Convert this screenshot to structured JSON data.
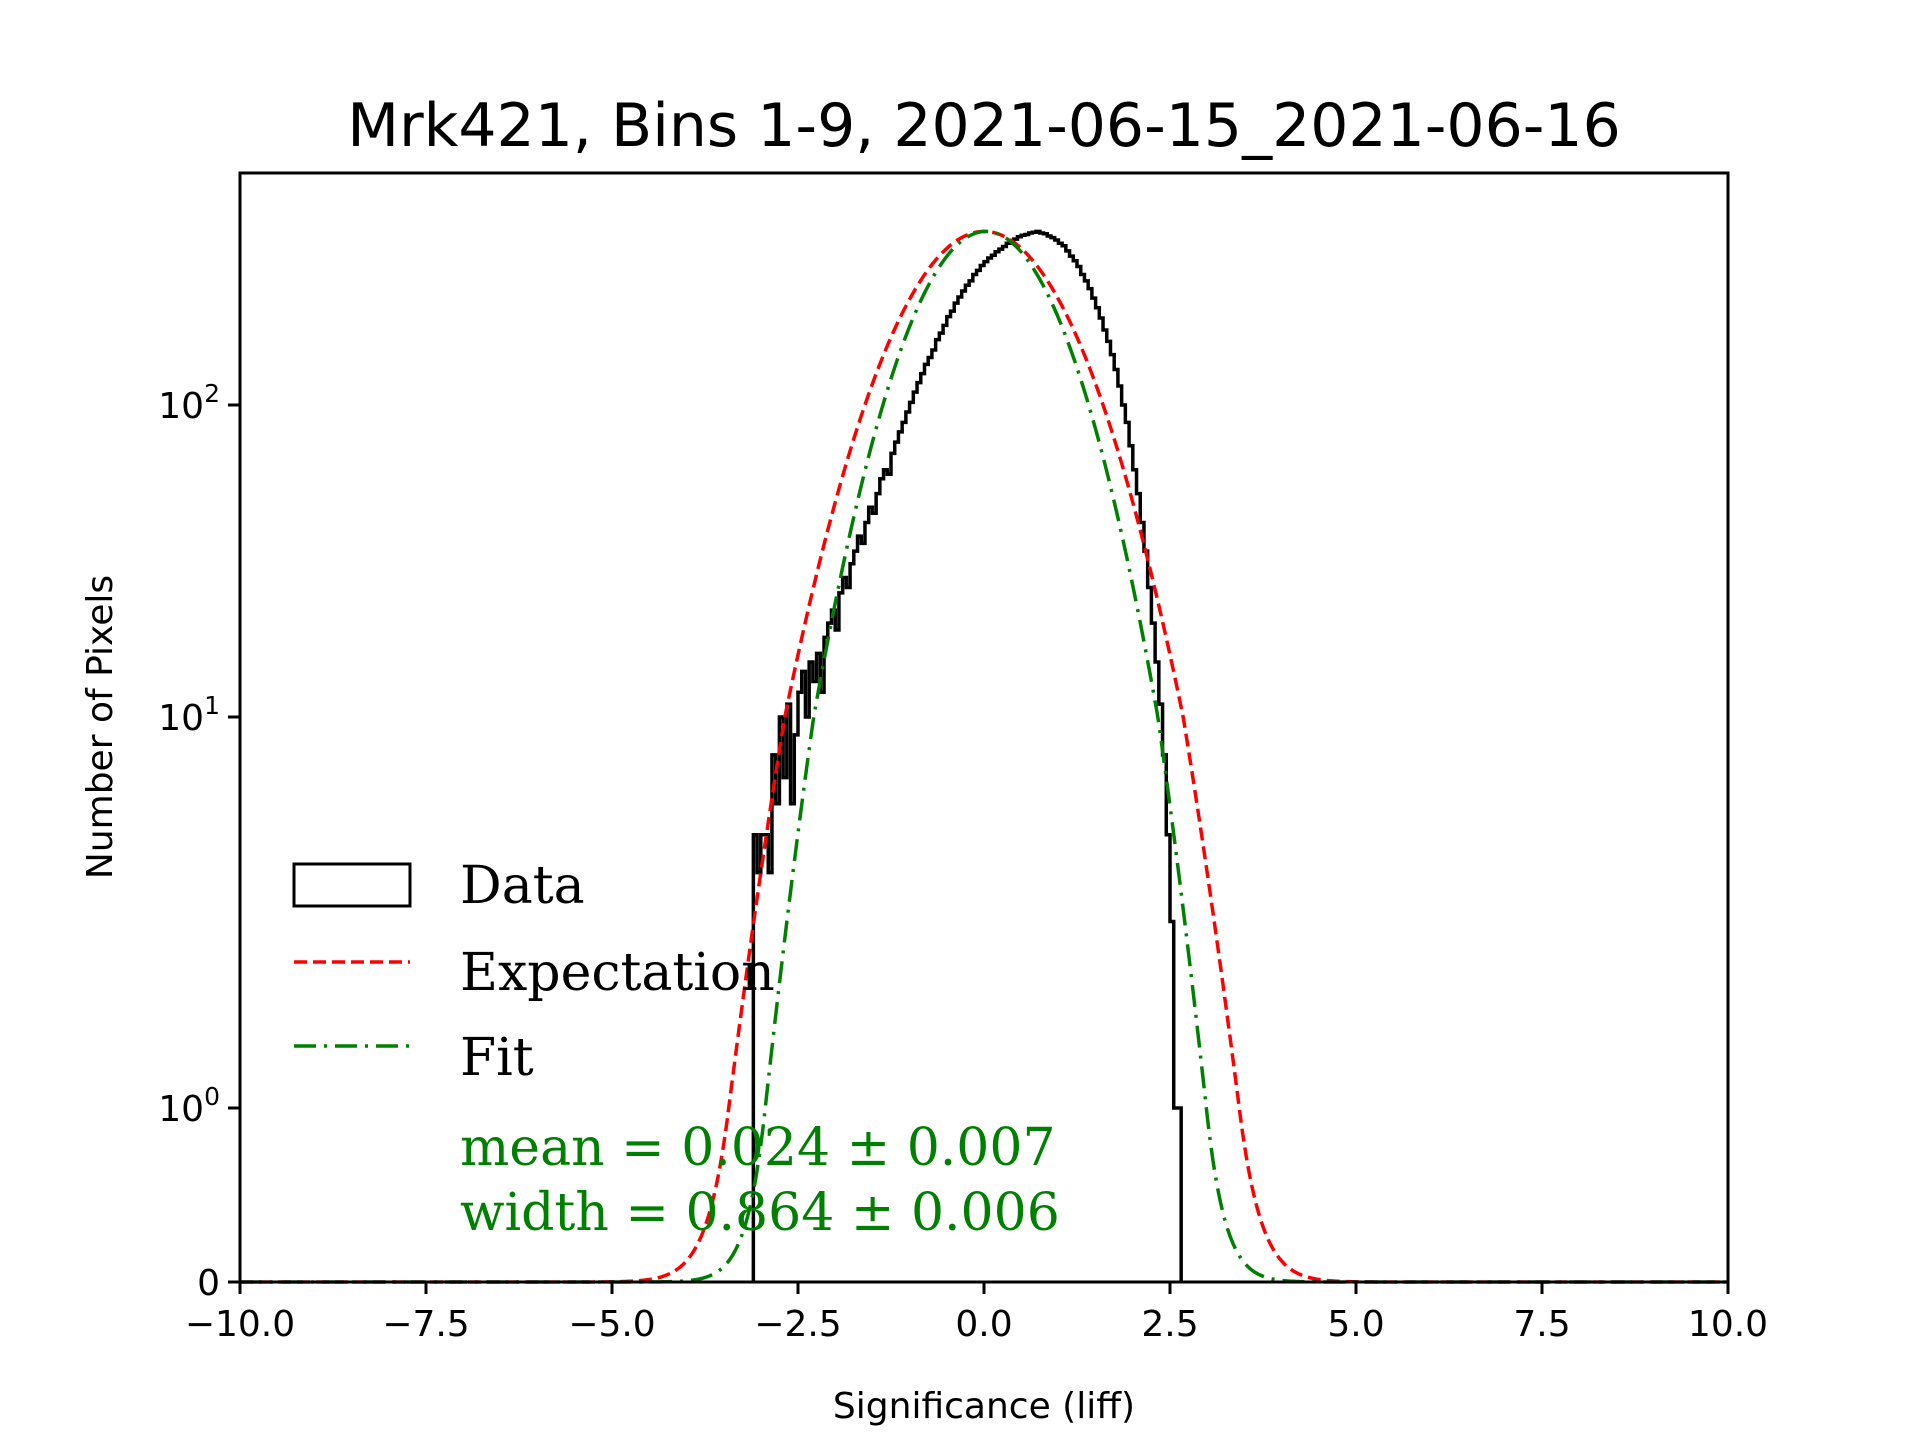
{
  "chart_data": {
    "type": "histogram",
    "title": "Mrk421, Bins 1-9, 2021-06-15_2021-06-16",
    "xlabel": "Significance (liff)",
    "ylabel": "Number of Pixels",
    "xlim": [
      -10,
      10
    ],
    "yscale": "symlog",
    "ylim": [
      0,
      400
    ],
    "x_ticks": [
      -10,
      -7.5,
      -5,
      -2.5,
      0,
      2.5,
      5,
      7.5,
      10
    ],
    "x_tick_labels": [
      "−10.0",
      "−7.5",
      "−5.0",
      "−2.5",
      "0.0",
      "2.5",
      "5.0",
      "7.5",
      "10.0"
    ],
    "y_ticks": [
      0,
      1,
      10,
      100
    ],
    "y_tick_labels": [
      {
        "base": "0",
        "exp": ""
      },
      {
        "base": "10",
        "exp": "0"
      },
      {
        "base": "10",
        "exp": "1"
      },
      {
        "base": "10",
        "exp": "2"
      }
    ],
    "legend": {
      "placement": "lower-left",
      "entries": [
        {
          "label": "Data",
          "style": "box",
          "color": "#000000"
        },
        {
          "label": "Expectation",
          "style": "dashed",
          "color": "#ff0000"
        },
        {
          "label": "Fit",
          "style": "dashdot",
          "color": "#008000"
        }
      ]
    },
    "annotation": {
      "lines": [
        "mean = 0.024 ± 0.007",
        "width = 0.864 ± 0.006"
      ],
      "color": "#008000"
    },
    "histogram": {
      "bin_start": -3.1,
      "bin_width": 0.05,
      "counts": [
        5,
        4,
        5,
        5,
        4,
        8,
        6,
        10,
        7,
        11,
        6,
        9,
        12,
        14,
        10,
        15,
        13,
        16,
        12,
        18,
        20,
        22,
        19,
        25,
        28,
        26,
        31,
        34,
        38,
        36,
        42,
        47,
        45,
        52,
        58,
        62,
        60,
        70,
        76,
        82,
        88,
        95,
        102,
        110,
        118,
        126,
        135,
        142,
        150,
        162,
        170,
        180,
        192,
        200,
        212,
        222,
        232,
        242,
        250,
        262,
        270,
        280,
        288,
        296,
        302,
        310,
        316,
        322,
        330,
        336,
        340,
        346,
        350,
        352,
        356,
        358,
        360,
        356,
        354,
        348,
        344,
        338,
        330,
        324,
        312,
        300,
        290,
        278,
        262,
        250,
        236,
        220,
        205,
        190,
        174,
        160,
        145,
        130,
        115,
        100,
        88,
        74,
        62,
        52,
        42,
        34,
        26,
        20,
        15,
        11,
        8,
        5,
        3,
        1,
        1
      ],
      "color": "#000000"
    },
    "expectation": {
      "mean": 0.0,
      "sigma": 1.0,
      "amplitude": 360,
      "color": "#ff0000",
      "linestyle": "dashed"
    },
    "fit": {
      "mean": 0.024,
      "sigma": 0.864,
      "amplitude": 360,
      "color": "#008000",
      "linestyle": "dashdot"
    }
  }
}
